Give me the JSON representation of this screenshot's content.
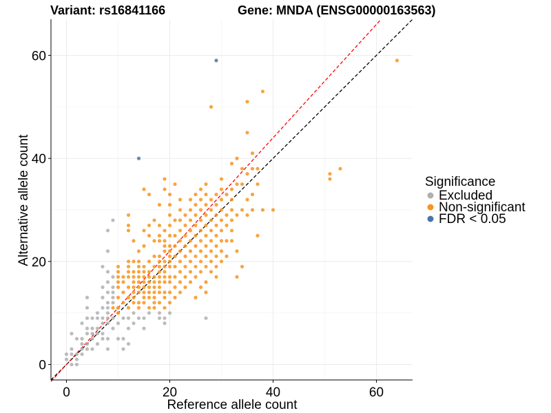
{
  "chart_data": {
    "type": "scatter",
    "title_left": "Variant: rs16841166",
    "title_right": "Gene: MNDA (ENSG00000163563)",
    "xlabel": "Reference allele count",
    "ylabel": "Alternative allele count",
    "xlim": [
      -3,
      67
    ],
    "ylim": [
      -3,
      67
    ],
    "xticks": [
      0,
      20,
      40,
      60
    ],
    "yticks": [
      0,
      20,
      40,
      60
    ],
    "grid": true,
    "reference_lines": [
      {
        "color": "#000000",
        "style": "dashed",
        "slope": 1.0,
        "intercept": 0
      },
      {
        "color": "#ff0000",
        "style": "dashed",
        "slope": 1.1,
        "intercept": 0
      }
    ],
    "legend": {
      "title": "Significance",
      "position": "right",
      "entries": [
        "Excluded",
        "Non-significant",
        "FDR < 0.05"
      ]
    },
    "series": [
      {
        "name": "Excluded",
        "color": "#b0b0b0",
        "points": [
          [
            0,
            1
          ],
          [
            0,
            2
          ],
          [
            1,
            0
          ],
          [
            1,
            2
          ],
          [
            1,
            3
          ],
          [
            1,
            6
          ],
          [
            2,
            0
          ],
          [
            2,
            1
          ],
          [
            2,
            2
          ],
          [
            2,
            5
          ],
          [
            3,
            2
          ],
          [
            3,
            3
          ],
          [
            3,
            4
          ],
          [
            3,
            5
          ],
          [
            3,
            8
          ],
          [
            4,
            3
          ],
          [
            4,
            4
          ],
          [
            4,
            6
          ],
          [
            4,
            7
          ],
          [
            4,
            9
          ],
          [
            4,
            11
          ],
          [
            4,
            13
          ],
          [
            5,
            3
          ],
          [
            5,
            5
          ],
          [
            5,
            6
          ],
          [
            5,
            7
          ],
          [
            5,
            9
          ],
          [
            6,
            4
          ],
          [
            6,
            6
          ],
          [
            6,
            7
          ],
          [
            6,
            9
          ],
          [
            6,
            10
          ],
          [
            7,
            5
          ],
          [
            7,
            6
          ],
          [
            7,
            8
          ],
          [
            7,
            9
          ],
          [
            7,
            11
          ],
          [
            7,
            13
          ],
          [
            7,
            15
          ],
          [
            7,
            19
          ],
          [
            8,
            3
          ],
          [
            8,
            5
          ],
          [
            8,
            8
          ],
          [
            8,
            9
          ],
          [
            8,
            10
          ],
          [
            8,
            11
          ],
          [
            8,
            12
          ],
          [
            8,
            14
          ],
          [
            8,
            16
          ],
          [
            8,
            18
          ],
          [
            8,
            22
          ],
          [
            8,
            26
          ],
          [
            9,
            7
          ],
          [
            9,
            9
          ],
          [
            9,
            12
          ],
          [
            9,
            13
          ],
          [
            9,
            14
          ],
          [
            9,
            15
          ],
          [
            9,
            17
          ],
          [
            9,
            28
          ],
          [
            10,
            5
          ],
          [
            10,
            8
          ],
          [
            10,
            10
          ],
          [
            10,
            11
          ],
          [
            11,
            3
          ],
          [
            11,
            5
          ],
          [
            11,
            9
          ],
          [
            12,
            4
          ],
          [
            12,
            7
          ],
          [
            12,
            9
          ],
          [
            13,
            8
          ],
          [
            13,
            10
          ],
          [
            14,
            9
          ],
          [
            15,
            7
          ],
          [
            15,
            9
          ],
          [
            16,
            10
          ],
          [
            18,
            9
          ],
          [
            18,
            10
          ],
          [
            19,
            8
          ],
          [
            19,
            9
          ],
          [
            20,
            10
          ],
          [
            27,
            9
          ]
        ]
      },
      {
        "name": "Non-significant",
        "color": "#f7941d",
        "points": [
          [
            9,
            11
          ],
          [
            10,
            10
          ],
          [
            10,
            11
          ],
          [
            10,
            13
          ],
          [
            10,
            15
          ],
          [
            10,
            16
          ],
          [
            10,
            17
          ],
          [
            10,
            18
          ],
          [
            10,
            19
          ],
          [
            11,
            12
          ],
          [
            11,
            14
          ],
          [
            11,
            16
          ],
          [
            11,
            17
          ],
          [
            12,
            11
          ],
          [
            12,
            13
          ],
          [
            12,
            15
          ],
          [
            12,
            17
          ],
          [
            12,
            18
          ],
          [
            12,
            19
          ],
          [
            12,
            20
          ],
          [
            12,
            26
          ],
          [
            12,
            27
          ],
          [
            12,
            29
          ],
          [
            13,
            12
          ],
          [
            13,
            13
          ],
          [
            13,
            14
          ],
          [
            13,
            15
          ],
          [
            13,
            16
          ],
          [
            13,
            17
          ],
          [
            13,
            18
          ],
          [
            13,
            20
          ],
          [
            13,
            24
          ],
          [
            14,
            11
          ],
          [
            14,
            12
          ],
          [
            14,
            14
          ],
          [
            14,
            15
          ],
          [
            14,
            16
          ],
          [
            14,
            17
          ],
          [
            14,
            18
          ],
          [
            14,
            19
          ],
          [
            14,
            20
          ],
          [
            14,
            22
          ],
          [
            15,
            12
          ],
          [
            15,
            13
          ],
          [
            15,
            14
          ],
          [
            15,
            15
          ],
          [
            15,
            16
          ],
          [
            15,
            17
          ],
          [
            15,
            18
          ],
          [
            15,
            19
          ],
          [
            15,
            23
          ],
          [
            15,
            26
          ],
          [
            15,
            34
          ],
          [
            16,
            11
          ],
          [
            16,
            13
          ],
          [
            16,
            14
          ],
          [
            16,
            15
          ],
          [
            16,
            16
          ],
          [
            16,
            17
          ],
          [
            16,
            18
          ],
          [
            16,
            20
          ],
          [
            16,
            25
          ],
          [
            16,
            27
          ],
          [
            16,
            33
          ],
          [
            17,
            11
          ],
          [
            17,
            12
          ],
          [
            17,
            13
          ],
          [
            17,
            14
          ],
          [
            17,
            15
          ],
          [
            17,
            16
          ],
          [
            17,
            17
          ],
          [
            17,
            19
          ],
          [
            17,
            21
          ],
          [
            17,
            24
          ],
          [
            17,
            28
          ],
          [
            18,
            12
          ],
          [
            18,
            14
          ],
          [
            18,
            15
          ],
          [
            18,
            16
          ],
          [
            18,
            17
          ],
          [
            18,
            18
          ],
          [
            18,
            19
          ],
          [
            18,
            20
          ],
          [
            18,
            21
          ],
          [
            18,
            24
          ],
          [
            18,
            25
          ],
          [
            18,
            27
          ],
          [
            18,
            31
          ],
          [
            19,
            11
          ],
          [
            19,
            13
          ],
          [
            19,
            14
          ],
          [
            19,
            16
          ],
          [
            19,
            17
          ],
          [
            19,
            18
          ],
          [
            19,
            19
          ],
          [
            19,
            20
          ],
          [
            19,
            22
          ],
          [
            19,
            23
          ],
          [
            19,
            24
          ],
          [
            19,
            26
          ],
          [
            19,
            34
          ],
          [
            19,
            36
          ],
          [
            20,
            12
          ],
          [
            20,
            14
          ],
          [
            20,
            16
          ],
          [
            20,
            17
          ],
          [
            20,
            19
          ],
          [
            20,
            20
          ],
          [
            20,
            21
          ],
          [
            20,
            22
          ],
          [
            20,
            23
          ],
          [
            20,
            25
          ],
          [
            20,
            27
          ],
          [
            20,
            29
          ],
          [
            20,
            31
          ],
          [
            20,
            33
          ],
          [
            21,
            13
          ],
          [
            21,
            15
          ],
          [
            21,
            17
          ],
          [
            21,
            19
          ],
          [
            21,
            21
          ],
          [
            21,
            23
          ],
          [
            21,
            25
          ],
          [
            21,
            28
          ],
          [
            21,
            35
          ],
          [
            22,
            14
          ],
          [
            22,
            16
          ],
          [
            22,
            18
          ],
          [
            22,
            20
          ],
          [
            22,
            22
          ],
          [
            22,
            24
          ],
          [
            22,
            26
          ],
          [
            22,
            28
          ],
          [
            22,
            30
          ],
          [
            22,
            32
          ],
          [
            23,
            15
          ],
          [
            23,
            17
          ],
          [
            23,
            19
          ],
          [
            23,
            21
          ],
          [
            23,
            23
          ],
          [
            23,
            25
          ],
          [
            23,
            27
          ],
          [
            23,
            29
          ],
          [
            24,
            16
          ],
          [
            24,
            18
          ],
          [
            24,
            20
          ],
          [
            24,
            22
          ],
          [
            24,
            24
          ],
          [
            24,
            26
          ],
          [
            24,
            28
          ],
          [
            24,
            30
          ],
          [
            24,
            32
          ],
          [
            25,
            13
          ],
          [
            25,
            17
          ],
          [
            25,
            19
          ],
          [
            25,
            21
          ],
          [
            25,
            23
          ],
          [
            25,
            25
          ],
          [
            25,
            27
          ],
          [
            25,
            29
          ],
          [
            25,
            31
          ],
          [
            25,
            33
          ],
          [
            26,
            15
          ],
          [
            26,
            18
          ],
          [
            26,
            20
          ],
          [
            26,
            22
          ],
          [
            26,
            24
          ],
          [
            26,
            26
          ],
          [
            26,
            28
          ],
          [
            26,
            30
          ],
          [
            26,
            32
          ],
          [
            26,
            34
          ],
          [
            27,
            14
          ],
          [
            27,
            16
          ],
          [
            27,
            19
          ],
          [
            27,
            21
          ],
          [
            27,
            23
          ],
          [
            27,
            25
          ],
          [
            27,
            27
          ],
          [
            27,
            29
          ],
          [
            27,
            31
          ],
          [
            27,
            33
          ],
          [
            27,
            35
          ],
          [
            28,
            18
          ],
          [
            28,
            20
          ],
          [
            28,
            22
          ],
          [
            28,
            24
          ],
          [
            28,
            26
          ],
          [
            28,
            28
          ],
          [
            28,
            30
          ],
          [
            28,
            32
          ],
          [
            28,
            50
          ],
          [
            29,
            17
          ],
          [
            29,
            19
          ],
          [
            29,
            21
          ],
          [
            29,
            23
          ],
          [
            29,
            25
          ],
          [
            29,
            27
          ],
          [
            29,
            29
          ],
          [
            29,
            31
          ],
          [
            29,
            33
          ],
          [
            30,
            20
          ],
          [
            30,
            22
          ],
          [
            30,
            24
          ],
          [
            30,
            26
          ],
          [
            30,
            28
          ],
          [
            30,
            30
          ],
          [
            30,
            32
          ],
          [
            30,
            34
          ],
          [
            30,
            36
          ],
          [
            31,
            21
          ],
          [
            31,
            24
          ],
          [
            31,
            27
          ],
          [
            31,
            29
          ],
          [
            31,
            33
          ],
          [
            32,
            24
          ],
          [
            32,
            26
          ],
          [
            32,
            28
          ],
          [
            32,
            30
          ],
          [
            32,
            32
          ],
          [
            32,
            34
          ],
          [
            32,
            39
          ],
          [
            33,
            17
          ],
          [
            33,
            22
          ],
          [
            33,
            29
          ],
          [
            33,
            35
          ],
          [
            33,
            40
          ],
          [
            34,
            19
          ],
          [
            34,
            30
          ],
          [
            34,
            35
          ],
          [
            34,
            38
          ],
          [
            35,
            29
          ],
          [
            35,
            32
          ],
          [
            35,
            37
          ],
          [
            35,
            45
          ],
          [
            35,
            51
          ],
          [
            36,
            30
          ],
          [
            36,
            33
          ],
          [
            36,
            38
          ],
          [
            36,
            41
          ],
          [
            37,
            25
          ],
          [
            37,
            35
          ],
          [
            37,
            38
          ],
          [
            38,
            30
          ],
          [
            38,
            53
          ],
          [
            40,
            30
          ],
          [
            51,
            36
          ],
          [
            51,
            37
          ],
          [
            53,
            38
          ],
          [
            64,
            59
          ]
        ]
      },
      {
        "name": "FDR < 0.05",
        "color": "#4a74a8",
        "points": [
          [
            14,
            40
          ],
          [
            29,
            59
          ]
        ]
      }
    ]
  }
}
